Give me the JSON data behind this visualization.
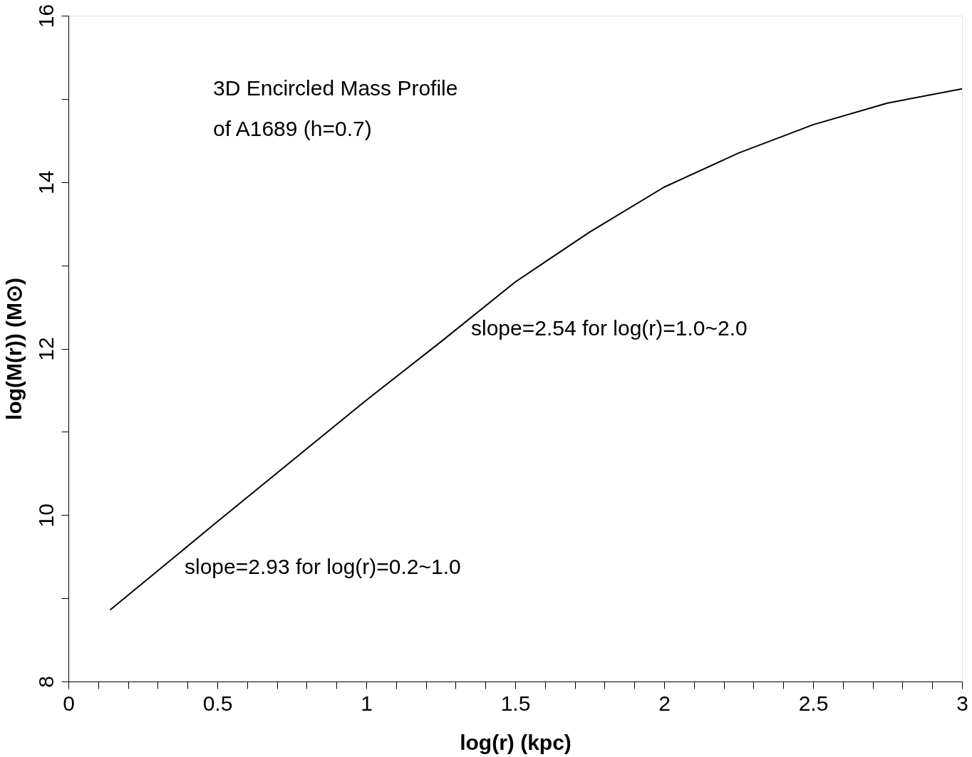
{
  "chart_data": {
    "type": "line",
    "xlabel": "log(r)  (kpc)",
    "ylabel": "log(M(r))  (M⊙)",
    "annotations": [
      "3D Encircled Mass Profile",
      "of A1689 (h=0.7)",
      "slope=2.54 for log(r)=1.0~2.0",
      "slope=2.93 for log(r)=0.2~1.0"
    ],
    "x": [
      0.14,
      0.5,
      0.75,
      1.0,
      1.25,
      1.5,
      1.75,
      2.0,
      2.25,
      2.5,
      2.75,
      3.0
    ],
    "series": [
      {
        "color": "#000000",
        "values": [
          8.86,
          9.92,
          10.65,
          11.38,
          12.08,
          12.8,
          13.4,
          13.94,
          14.35,
          14.69,
          14.95,
          15.12
        ]
      }
    ],
    "xlim": [
      0,
      3
    ],
    "ylim": [
      8,
      16
    ],
    "xticks": [
      0,
      {
        "value": 0.1,
        "label": null
      },
      {
        "value": 0.2,
        "label": null
      },
      {
        "value": 0.3,
        "label": null
      },
      {
        "value": 0.4,
        "label": null
      },
      0.5,
      {
        "value": 0.6,
        "label": null
      },
      {
        "value": 0.7,
        "label": null
      },
      {
        "value": 0.8,
        "label": null
      },
      {
        "value": 0.9,
        "label": null
      },
      1,
      {
        "value": 1.1,
        "label": null
      },
      {
        "value": 1.2,
        "label": null
      },
      {
        "value": 1.3,
        "label": null
      },
      {
        "value": 1.4,
        "label": null
      },
      1.5,
      {
        "value": 1.6,
        "label": null
      },
      {
        "value": 1.7,
        "label": null
      },
      {
        "value": 1.8,
        "label": null
      },
      {
        "value": 1.9,
        "label": null
      },
      2,
      {
        "value": 2.1,
        "label": null
      },
      {
        "value": 2.2,
        "label": null
      },
      {
        "value": 2.3,
        "label": null
      },
      {
        "value": 2.4,
        "label": null
      },
      2.5,
      {
        "value": 2.6,
        "label": null
      },
      {
        "value": 2.7,
        "label": null
      },
      {
        "value": 2.8,
        "label": null
      },
      {
        "value": 2.9,
        "label": null
      },
      3
    ],
    "yticks": [
      8,
      {
        "value": 9,
        "label": null
      },
      10,
      {
        "value": 11,
        "label": null
      },
      12,
      {
        "value": 13,
        "label": null
      },
      14,
      {
        "value": 15,
        "label": null
      },
      16
    ],
    "grid": false,
    "marker": "none",
    "line_style": "solid"
  }
}
